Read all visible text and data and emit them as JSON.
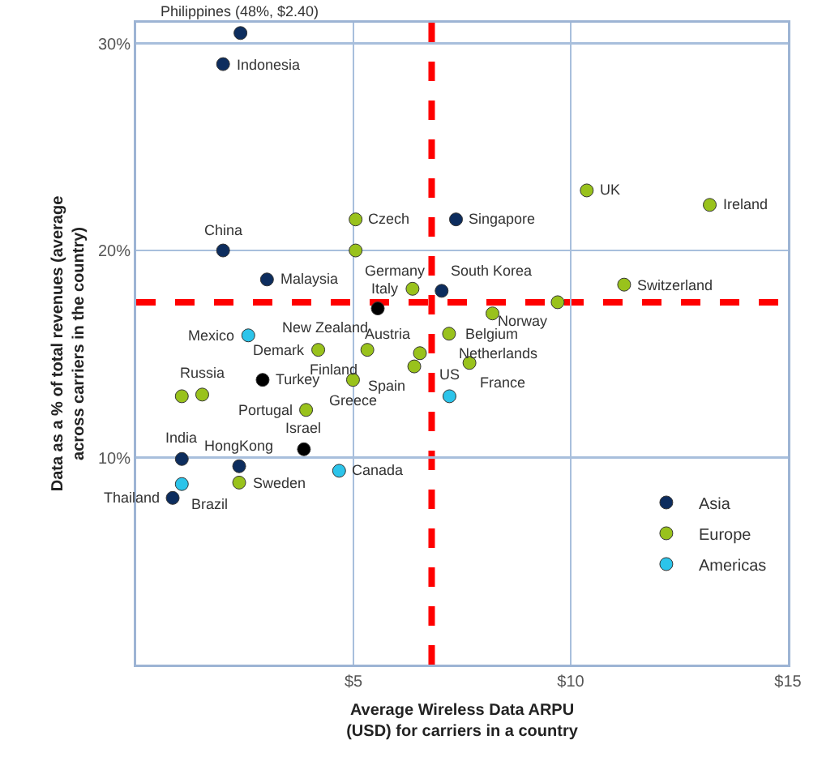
{
  "chart_data": {
    "type": "scatter",
    "xlabel": "Average Wireless Data ARPU\n(USD) for carriers in a country",
    "ylabel": "Data as a % of total revenues (average\nacross carriers in the country)",
    "xlim": [
      0,
      15
    ],
    "xticks": [
      {
        "value": 5,
        "label": "$5"
      },
      {
        "value": 10,
        "label": "$10"
      },
      {
        "value": 15,
        "label": "$15"
      }
    ],
    "ylim": [
      0,
      31
    ],
    "yticks": [
      {
        "value": 10,
        "label": "10%"
      },
      {
        "value": 20,
        "label": "20%"
      },
      {
        "value": 30,
        "label": "30%"
      }
    ],
    "grid": true,
    "legend": "bottom right",
    "marker": "circle",
    "series": [
      {
        "name": "Asia",
        "color": "#0d2d5e",
        "x": [
          2.4,
          2.0,
          2.0,
          7.36,
          3.01,
          7.03,
          1.05,
          2.37,
          0.84
        ],
        "values": [
          30.5,
          29.0,
          20.0,
          21.5,
          18.6,
          18.05,
          9.93,
          9.58,
          8.05
        ]
      },
      {
        "name": "Europe",
        "color": "#99c21c",
        "x": [
          5.05,
          5.05,
          10.37,
          13.2,
          11.23,
          9.7,
          6.36,
          8.2,
          7.2,
          6.53,
          6.4,
          7.67,
          4.19,
          5.32,
          4.99,
          1.05,
          1.52,
          3.91,
          2.37
        ],
        "values": [
          21.5,
          20.0,
          22.9,
          22.2,
          18.35,
          17.5,
          18.15,
          16.96,
          15.98,
          15.04,
          14.4,
          14.57,
          15.2,
          15.2,
          13.75,
          12.96,
          13.04,
          12.3,
          8.79
        ]
      },
      {
        "name": "Americas",
        "color": "#2cc4ea",
        "x": [
          7.21,
          2.58,
          4.67,
          1.05
        ],
        "values": [
          12.96,
          15.9,
          9.36,
          8.72
        ]
      },
      {
        "color": "#000000",
        "x": [
          5.56,
          2.91,
          3.86
        ],
        "values": [
          17.2,
          13.75,
          10.4
        ]
      }
    ],
    "ref_lines": [
      {
        "axis": "x",
        "value": 6.8,
        "color": "#ff0000",
        "line_style": "dashed"
      },
      {
        "axis": "y",
        "value": 17.5,
        "color": "#ff0000",
        "line_style": "dashed"
      }
    ],
    "annotations": [
      {
        "text": "Philippines (48%, $2.40)",
        "x": 2.4,
        "y": 30.5
      },
      {
        "text": "Indonesia",
        "x": 2.0,
        "y": 29.0
      },
      {
        "text": "China",
        "x": 2.0,
        "y": 20.0
      },
      {
        "text": "Singapore",
        "x": 7.36,
        "y": 21.5
      },
      {
        "text": "Malaysia",
        "x": 3.01,
        "y": 18.6
      },
      {
        "text": "South Korea",
        "x": 7.03,
        "y": 18.05
      },
      {
        "text": "India",
        "x": 1.05,
        "y": 9.93
      },
      {
        "text": "HongKong",
        "x": 2.37,
        "y": 9.58
      },
      {
        "text": "Thailand",
        "x": 0.84,
        "y": 8.05
      },
      {
        "text": "Czech",
        "x": 5.05,
        "y": 21.5
      },
      {
        "text": "Germany",
        "x": 5.05,
        "y": 20.0
      },
      {
        "text": "UK",
        "x": 10.37,
        "y": 22.9
      },
      {
        "text": "Ireland",
        "x": 13.2,
        "y": 22.2
      },
      {
        "text": "Switzerland",
        "x": 11.23,
        "y": 18.35
      },
      {
        "text": "Norway",
        "x": 9.7,
        "y": 17.5
      },
      {
        "text": "Italy",
        "x": 6.36,
        "y": 18.15
      },
      {
        "text": "Belgium",
        "x": 8.2,
        "y": 16.96
      },
      {
        "text": "Netherlands",
        "x": 7.2,
        "y": 15.98
      },
      {
        "text": "Austria",
        "x": 6.53,
        "y": 15.04
      },
      {
        "text": "Spain",
        "x": 6.4,
        "y": 14.4
      },
      {
        "text": "France",
        "x": 7.67,
        "y": 14.57
      },
      {
        "text": "Demark",
        "x": 4.19,
        "y": 15.2
      },
      {
        "text": "Finland",
        "x": 5.32,
        "y": 15.2
      },
      {
        "text": "Greece",
        "x": 4.99,
        "y": 13.75
      },
      {
        "text": "Russia",
        "x": 1.52,
        "y": 13.04
      },
      {
        "text": "Portugal",
        "x": 3.91,
        "y": 12.3
      },
      {
        "text": "Sweden",
        "x": 2.37,
        "y": 8.79
      },
      {
        "text": "US",
        "x": 7.21,
        "y": 12.96
      },
      {
        "text": "Mexico",
        "x": 2.58,
        "y": 15.9
      },
      {
        "text": "Canada",
        "x": 4.67,
        "y": 9.36
      },
      {
        "text": "Brazil",
        "x": 1.05,
        "y": 8.72
      },
      {
        "text": "New Zealand",
        "x": 5.56,
        "y": 17.2
      },
      {
        "text": "Turkey",
        "x": 2.91,
        "y": 13.75
      },
      {
        "text": "Israel",
        "x": 3.86,
        "y": 10.4
      }
    ]
  }
}
